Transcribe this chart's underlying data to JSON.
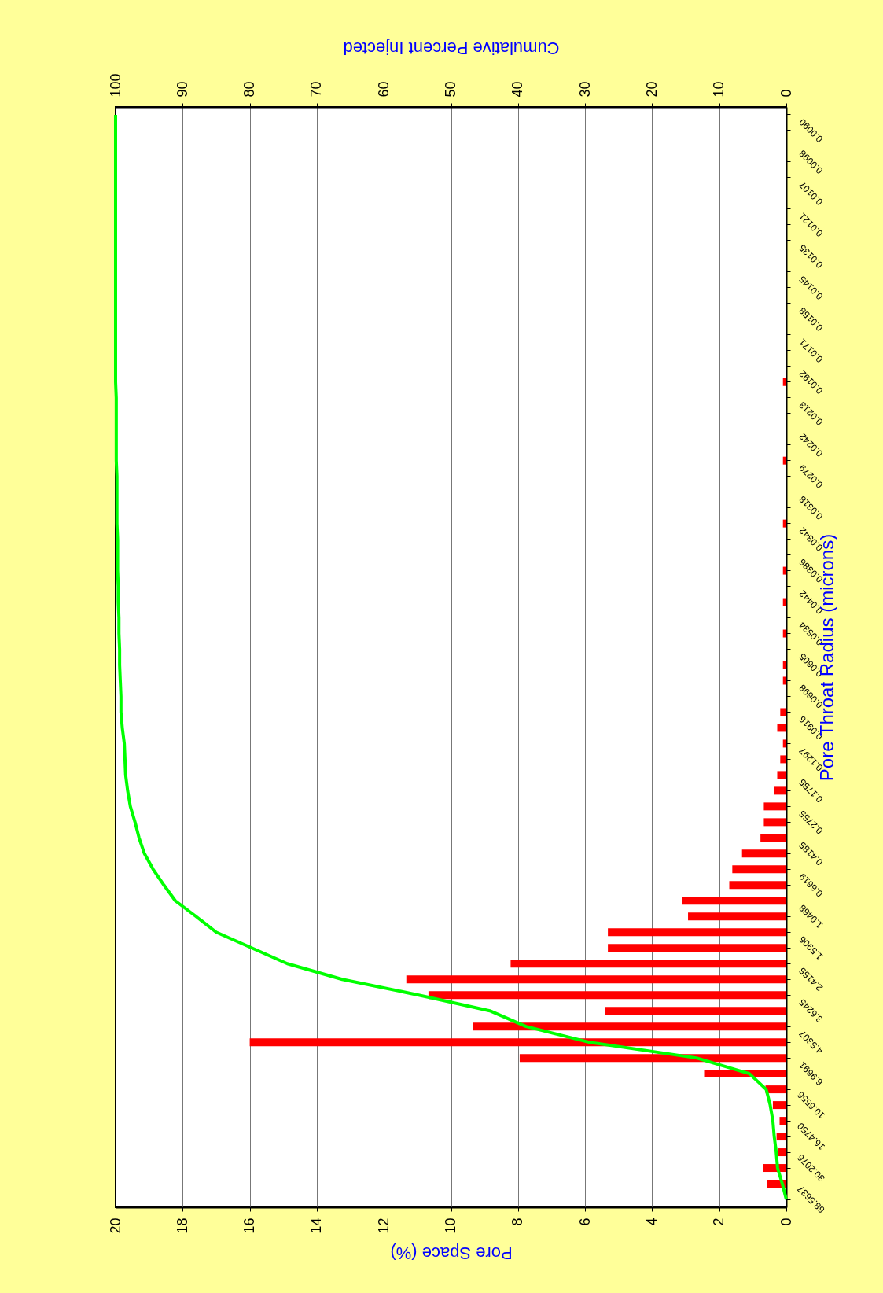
{
  "chart_data": {
    "type": "bar",
    "orientation": "horizontal",
    "xlabel": "Pore Space (%)",
    "x2label": "Cumulative Percent Injected",
    "ylabel": "Pore Throat Radius (microns)",
    "xlim": [
      20,
      0
    ],
    "xticks": [
      0,
      2,
      4,
      6,
      8,
      10,
      12,
      14,
      16,
      18,
      20
    ],
    "x2lim": [
      100,
      0
    ],
    "x2ticks": [
      0,
      10,
      20,
      30,
      40,
      50,
      60,
      70,
      80,
      90,
      100
    ],
    "grid": "x",
    "categories": [
      null,
      "0.0090",
      null,
      "0.0098",
      null,
      "0.0107",
      null,
      "0.0121",
      null,
      "0.0135",
      null,
      "0.0145",
      null,
      "0.0158",
      null,
      "0.0171",
      null,
      "0.0192",
      null,
      "0.0213",
      null,
      "0.0242",
      null,
      "0.0279",
      null,
      "0.0318",
      null,
      "0.0342",
      null,
      "0.0386",
      null,
      "0.0442",
      null,
      "0.0534",
      null,
      "0.0605",
      null,
      "0.0698",
      null,
      "0.0916",
      null,
      "0.1297",
      null,
      "0.1755",
      null,
      "0.2755",
      null,
      "0.4185",
      null,
      "0.6619",
      null,
      "1.0468",
      null,
      "1.5906",
      null,
      "2.4155",
      null,
      "3.6245",
      null,
      "4.5307",
      null,
      "6.9691",
      null,
      "10.6556",
      null,
      "16.4750",
      null,
      "30.2076",
      null,
      "68.5637"
    ],
    "series": [
      {
        "color": "#ff0000",
        "values": [
          0,
          0,
          0,
          0,
          0,
          0,
          0,
          0,
          0,
          0,
          0,
          0,
          0,
          0,
          0,
          0,
          0,
          0.1,
          0,
          0,
          0,
          0,
          0.1,
          0,
          0,
          0,
          0.1,
          0,
          0,
          0.1,
          0,
          0.1,
          0,
          0.1,
          0,
          0.1,
          0.1,
          0,
          0.18,
          0.27,
          0.1,
          0.18,
          0.27,
          0.37,
          0.67,
          0.67,
          0.77,
          1.32,
          1.61,
          1.7,
          3.11,
          2.93,
          5.32,
          5.32,
          8.22,
          11.33,
          10.67,
          5.4,
          9.35,
          16.0,
          7.95,
          2.45,
          0.62,
          0.4,
          0.2,
          0.29,
          0.26,
          0.68,
          0.57,
          0
        ]
      },
      {
        "type": "line",
        "axis": "x2",
        "color": "#00ff00",
        "values": [
          100,
          100,
          100,
          100,
          100,
          100,
          100,
          100,
          100,
          100,
          100,
          100,
          100,
          100,
          100,
          100,
          100,
          100,
          99.9,
          99.9,
          99.9,
          99.9,
          99.9,
          99.8,
          99.8,
          99.8,
          99.8,
          99.7,
          99.7,
          99.7,
          99.6,
          99.6,
          99.5,
          99.5,
          99.4,
          99.4,
          99.3,
          99.2,
          99.2,
          99.0,
          98.7,
          98.6,
          98.5,
          98.2,
          97.8,
          97.1,
          96.5,
          95.7,
          94.4,
          92.8,
          91.1,
          88.0,
          85.0,
          79.7,
          74.4,
          66.2,
          54.8,
          44.2,
          38.8,
          29.4,
          13.4,
          5.5,
          3.0,
          2.4,
          2.0,
          1.8,
          1.5,
          1.3,
          0.6,
          0
        ]
      }
    ]
  }
}
